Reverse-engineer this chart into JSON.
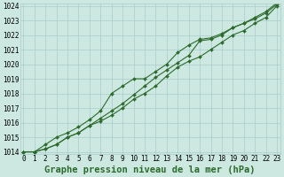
{
  "title": "Graphe pression niveau de la mer (hPa)",
  "xlabel_hours": [
    0,
    1,
    2,
    3,
    4,
    5,
    6,
    7,
    8,
    9,
    10,
    11,
    12,
    13,
    14,
    15,
    16,
    17,
    18,
    19,
    20,
    21,
    22,
    23
  ],
  "line_main": [
    1014.0,
    1014.0,
    1014.2,
    1014.5,
    1015.0,
    1015.3,
    1015.8,
    1016.3,
    1016.8,
    1017.3,
    1017.9,
    1018.5,
    1019.1,
    1019.6,
    1020.1,
    1020.6,
    1021.6,
    1021.7,
    1022.0,
    1022.5,
    1022.8,
    1023.1,
    1023.5,
    1024.1
  ],
  "line_high": [
    1014.0,
    1014.0,
    1014.5,
    1015.0,
    1015.3,
    1015.7,
    1016.2,
    1016.8,
    1018.0,
    1018.5,
    1019.0,
    1019.0,
    1019.5,
    1020.0,
    1020.8,
    1021.3,
    1021.7,
    1021.8,
    1022.1,
    1022.5,
    1022.8,
    1023.2,
    1023.6,
    1024.2
  ],
  "line_low": [
    1014.0,
    1014.0,
    1014.2,
    1014.5,
    1015.0,
    1015.3,
    1015.8,
    1016.1,
    1016.5,
    1017.0,
    1017.6,
    1018.0,
    1018.5,
    1019.2,
    1019.8,
    1020.2,
    1020.5,
    1021.0,
    1021.5,
    1022.0,
    1022.3,
    1022.8,
    1023.2,
    1024.0
  ],
  "line_color": "#2d6a2d",
  "bg_color": "#cce8e0",
  "grid_color": "#aacccc",
  "ylim_min": 1014,
  "ylim_max": 1024,
  "yticks": [
    1014,
    1015,
    1016,
    1017,
    1018,
    1019,
    1020,
    1021,
    1022,
    1023,
    1024
  ],
  "marker": "D",
  "marker_size": 2.0,
  "linewidth": 0.8,
  "title_fontsize": 7.5,
  "tick_fontsize": 5.5,
  "title_color": "#2d6a2d"
}
